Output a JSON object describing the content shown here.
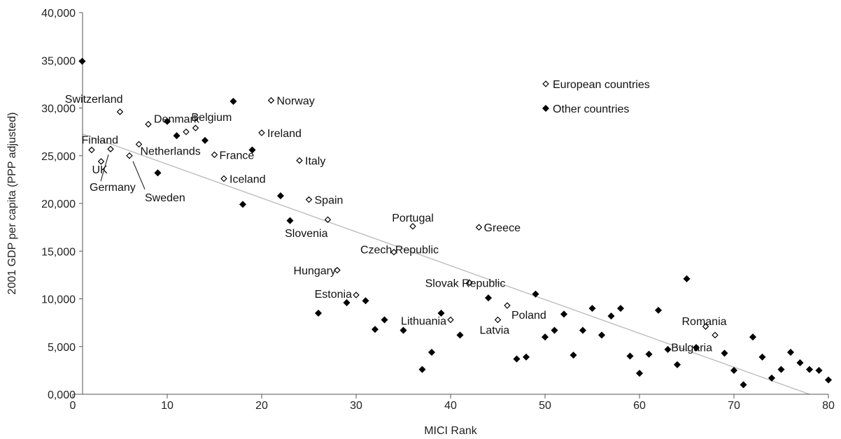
{
  "chart_data": {
    "type": "scatter",
    "xlabel": "MICI Rank",
    "ylabel": "2001 GDP per capita (PPP adjusted)",
    "xlim": [
      0,
      80
    ],
    "ylim": [
      0,
      40000
    ],
    "xticks": [
      {
        "value": 0,
        "label": "0"
      },
      {
        "value": 10,
        "label": "10"
      },
      {
        "value": 20,
        "label": "20"
      },
      {
        "value": 30,
        "label": "30"
      },
      {
        "value": 40,
        "label": "40"
      },
      {
        "value": 50,
        "label": "50"
      },
      {
        "value": 60,
        "label": "60"
      },
      {
        "value": 70,
        "label": "70"
      },
      {
        "value": 80,
        "label": "80"
      }
    ],
    "yticks": [
      {
        "value": 0,
        "label": "0,000"
      },
      {
        "value": 5000,
        "label": "5,000"
      },
      {
        "value": 10000,
        "label": "10,000"
      },
      {
        "value": 15000,
        "label": "15,000"
      },
      {
        "value": 20000,
        "label": "20,000"
      },
      {
        "value": 25000,
        "label": "25,000"
      },
      {
        "value": 30000,
        "label": "30,000"
      },
      {
        "value": 35000,
        "label": "35,000"
      },
      {
        "value": 40000,
        "label": "40,000"
      }
    ],
    "grid": false,
    "legend_placement": "top-right",
    "trendline": {
      "from": [
        1,
        27300
      ],
      "to": [
        78,
        0
      ],
      "color": "#b8b8b8"
    },
    "series": [
      {
        "name": "European countries",
        "marker": "open-diamond",
        "color": "#000000",
        "points": [
          {
            "x": 5,
            "y": 29600,
            "label": "Switzerland"
          },
          {
            "x": 8,
            "y": 28300,
            "label": "Denmark"
          },
          {
            "x": 12,
            "y": 27500,
            "label": ""
          },
          {
            "x": 13,
            "y": 27900,
            "label": "Belgium"
          },
          {
            "x": 21,
            "y": 30800,
            "label": "Norway"
          },
          {
            "x": 20,
            "y": 27400,
            "label": "Ireland"
          },
          {
            "x": 2,
            "y": 25600,
            "label": "Finland"
          },
          {
            "x": 3,
            "y": 24400,
            "label": "UK"
          },
          {
            "x": 4,
            "y": 25700,
            "label": "Germany"
          },
          {
            "x": 6,
            "y": 25000,
            "label": "Sweden"
          },
          {
            "x": 7,
            "y": 26200,
            "label": "Netherlands"
          },
          {
            "x": 15,
            "y": 25100,
            "label": "France"
          },
          {
            "x": 16,
            "y": 22600,
            "label": "Iceland"
          },
          {
            "x": 24,
            "y": 24500,
            "label": "Italy"
          },
          {
            "x": 25,
            "y": 20400,
            "label": "Spain"
          },
          {
            "x": 27,
            "y": 18300,
            "label": "Slovenia"
          },
          {
            "x": 36,
            "y": 17600,
            "label": "Portugal"
          },
          {
            "x": 43,
            "y": 17500,
            "label": "Greece"
          },
          {
            "x": 34,
            "y": 14900,
            "label": "Czech Republic"
          },
          {
            "x": 28,
            "y": 13000,
            "label": "Hungary"
          },
          {
            "x": 30,
            "y": 10400,
            "label": "Estonia"
          },
          {
            "x": 42,
            "y": 11700,
            "label": "Slovak Republic"
          },
          {
            "x": 46,
            "y": 9300,
            "label": "Poland"
          },
          {
            "x": 40,
            "y": 7800,
            "label": "Lithuania"
          },
          {
            "x": 45,
            "y": 7800,
            "label": "Latvia"
          },
          {
            "x": 67,
            "y": 7100,
            "label": "Romania"
          },
          {
            "x": 68,
            "y": 6200,
            "label": "Bulgaria"
          }
        ]
      },
      {
        "name": "Other countries",
        "marker": "filled-diamond",
        "color": "#000000",
        "points": [
          {
            "x": 1,
            "y": 34900
          },
          {
            "x": 9,
            "y": 23200
          },
          {
            "x": 10,
            "y": 28600
          },
          {
            "x": 11,
            "y": 27100
          },
          {
            "x": 14,
            "y": 26600
          },
          {
            "x": 17,
            "y": 30700
          },
          {
            "x": 18,
            "y": 19900
          },
          {
            "x": 19,
            "y": 25600
          },
          {
            "x": 22,
            "y": 20800
          },
          {
            "x": 23,
            "y": 18200
          },
          {
            "x": 26,
            "y": 8500
          },
          {
            "x": 29,
            "y": 9600
          },
          {
            "x": 31,
            "y": 9800
          },
          {
            "x": 32,
            "y": 6800
          },
          {
            "x": 33,
            "y": 7800
          },
          {
            "x": 35,
            "y": 6700
          },
          {
            "x": 37,
            "y": 2600
          },
          {
            "x": 38,
            "y": 4400
          },
          {
            "x": 39,
            "y": 8500
          },
          {
            "x": 41,
            "y": 6200
          },
          {
            "x": 44,
            "y": 10100
          },
          {
            "x": 47,
            "y": 3700
          },
          {
            "x": 48,
            "y": 3900
          },
          {
            "x": 49,
            "y": 10500
          },
          {
            "x": 50,
            "y": 6000
          },
          {
            "x": 51,
            "y": 6700
          },
          {
            "x": 52,
            "y": 8400
          },
          {
            "x": 53,
            "y": 4100
          },
          {
            "x": 54,
            "y": 6700
          },
          {
            "x": 55,
            "y": 9000
          },
          {
            "x": 56,
            "y": 6200
          },
          {
            "x": 57,
            "y": 8200
          },
          {
            "x": 58,
            "y": 9000
          },
          {
            "x": 59,
            "y": 4000
          },
          {
            "x": 60,
            "y": 2200
          },
          {
            "x": 61,
            "y": 4200
          },
          {
            "x": 62,
            "y": 8800
          },
          {
            "x": 63,
            "y": 4700
          },
          {
            "x": 64,
            "y": 3100
          },
          {
            "x": 65,
            "y": 12100
          },
          {
            "x": 66,
            "y": 4900
          },
          {
            "x": 69,
            "y": 4300
          },
          {
            "x": 70,
            "y": 2500
          },
          {
            "x": 71,
            "y": 1000
          },
          {
            "x": 72,
            "y": 6000
          },
          {
            "x": 73,
            "y": 3900
          },
          {
            "x": 74,
            "y": 1700
          },
          {
            "x": 75,
            "y": 2600
          },
          {
            "x": 76,
            "y": 4400
          },
          {
            "x": 77,
            "y": 3300
          },
          {
            "x": 78,
            "y": 2600
          },
          {
            "x": 79,
            "y": 2500
          },
          {
            "x": 80,
            "y": 1500
          }
        ]
      }
    ]
  }
}
